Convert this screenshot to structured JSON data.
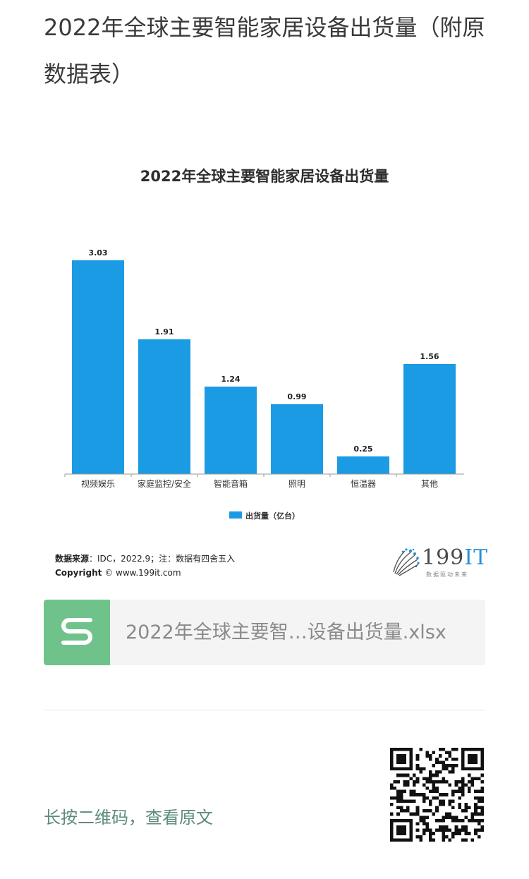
{
  "article": {
    "title": "2022年全球主要智能家居设备出货量（附原数据表）"
  },
  "chart_data": {
    "type": "bar",
    "title": "2022年全球主要智能家居设备出货量",
    "categories": [
      "视频娱乐",
      "家庭监控/安全",
      "智能音箱",
      "照明",
      "恒温器",
      "其他"
    ],
    "series": [
      {
        "name": "出货量（亿台）",
        "values": [
          3.03,
          1.91,
          1.24,
          0.99,
          0.25,
          1.56
        ],
        "color": "#1a9be3"
      }
    ],
    "value_labels": [
      "3.03",
      "1.91",
      "1.24",
      "0.99",
      "0.25",
      "1.56"
    ],
    "ylim": [
      0,
      3.3
    ],
    "grid": false,
    "legend": "bottom-center",
    "source_label": "数据来源",
    "source_text": "：IDC，2022.9；注：数据有四舍五入",
    "copyright_label": "Copyright",
    "copyright_text": "© www.199it.com"
  },
  "brand": {
    "name_numbers": "199",
    "name_letters": "IT",
    "tagline": "数据驱动未来"
  },
  "attachment": {
    "file_name": "2022年全球主要智…设备出货量.xlsx",
    "icon": "spreadsheet-s-icon",
    "icon_color": "#6fc38a"
  },
  "footer": {
    "qr_hint": "长按二维码，查看原文",
    "qr_icon": "qr-code-icon"
  }
}
